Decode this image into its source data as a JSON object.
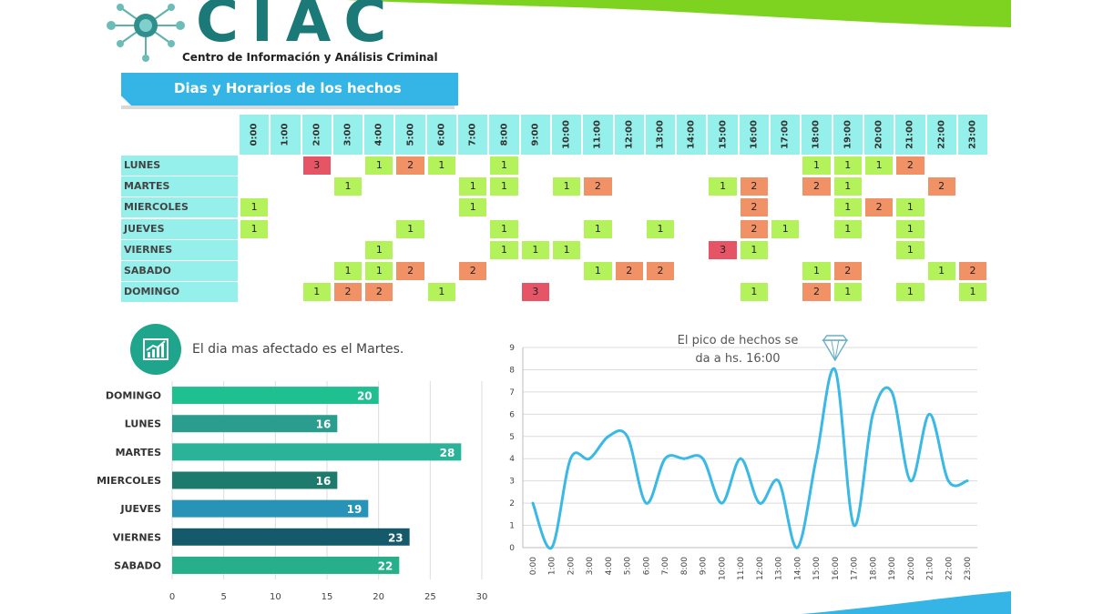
{
  "header": {
    "logo_text": "CIAC",
    "subtitle": "Centro de Información y Análisis Criminal",
    "section_title": "Dias y Horarios de los hechos",
    "brand_green": "#7ed321",
    "brand_teal": "#1b7a78",
    "banner_blue": "#35b5e5"
  },
  "heatmap": {
    "hours": [
      "0:00",
      "1:00",
      "2:00",
      "3:00",
      "4:00",
      "5:00",
      "6:00",
      "7:00",
      "8:00",
      "9:00",
      "10:00",
      "11:00",
      "12:00",
      "13:00",
      "14:00",
      "15:00",
      "16:00",
      "17:00",
      "18:00",
      "19:00",
      "20:00",
      "21:00",
      "22:00",
      "23:00"
    ],
    "days": [
      "LUNES",
      "MARTES",
      "MIERCOLES",
      "JUEVES",
      "VIERNES",
      "SABADO",
      "DOMINGO"
    ],
    "values": [
      [
        0,
        0,
        3,
        0,
        1,
        2,
        1,
        0,
        1,
        0,
        0,
        0,
        0,
        0,
        0,
        0,
        0,
        0,
        1,
        1,
        1,
        2,
        0,
        0
      ],
      [
        0,
        0,
        0,
        1,
        0,
        0,
        0,
        1,
        1,
        0,
        1,
        2,
        0,
        0,
        0,
        1,
        2,
        0,
        2,
        1,
        0,
        0,
        2,
        0
      ],
      [
        1,
        0,
        0,
        0,
        0,
        0,
        0,
        1,
        0,
        0,
        0,
        0,
        0,
        0,
        0,
        0,
        2,
        0,
        0,
        1,
        2,
        1,
        0,
        0
      ],
      [
        1,
        0,
        0,
        0,
        0,
        1,
        0,
        0,
        1,
        0,
        0,
        1,
        0,
        1,
        0,
        0,
        2,
        1,
        0,
        1,
        0,
        1,
        0,
        0
      ],
      [
        0,
        0,
        0,
        0,
        1,
        0,
        0,
        0,
        1,
        1,
        1,
        0,
        0,
        0,
        0,
        3,
        1,
        0,
        0,
        0,
        0,
        1,
        0,
        0
      ],
      [
        0,
        0,
        0,
        1,
        1,
        2,
        0,
        2,
        0,
        0,
        0,
        1,
        2,
        2,
        0,
        0,
        0,
        0,
        1,
        2,
        0,
        0,
        1,
        2
      ],
      [
        0,
        0,
        1,
        2,
        2,
        0,
        1,
        0,
        0,
        3,
        0,
        0,
        0,
        0,
        0,
        0,
        1,
        0,
        2,
        1,
        0,
        1,
        0,
        1
      ]
    ],
    "colors": {
      "1": "#b4f25c",
      "2": "#f19166",
      "3": "#e55565"
    }
  },
  "bar_section": {
    "headline": "El dia mas afectado es el Martes.",
    "icon": "bar-chart-growth-icon"
  },
  "line_section": {
    "annotation_line1": "El pico de hechos se",
    "annotation_line2": "da a hs. 16:00",
    "marker_icon": "diamond-icon"
  },
  "chart_data": [
    {
      "type": "bar",
      "orientation": "horizontal",
      "categories": [
        "DOMINGO",
        "LUNES",
        "MARTES",
        "MIERCOLES",
        "JUEVES",
        "VIERNES",
        "SABADO"
      ],
      "values": [
        20,
        16,
        28,
        16,
        19,
        23,
        22
      ],
      "colors": [
        "#1fbf8f",
        "#2a9d8f",
        "#2bb39a",
        "#1f7a6e",
        "#2693b7",
        "#145a6b",
        "#27ae8a"
      ],
      "xlim": [
        0,
        30
      ],
      "xticks": [
        0,
        5,
        10,
        15,
        20,
        25,
        30
      ],
      "grid": true
    },
    {
      "type": "line",
      "x": [
        "0:00",
        "1:00",
        "2:00",
        "3:00",
        "4:00",
        "5:00",
        "6:00",
        "7:00",
        "8:00",
        "9:00",
        "10:00",
        "11:00",
        "12:00",
        "13:00",
        "14:00",
        "15:00",
        "16:00",
        "17:00",
        "18:00",
        "19:00",
        "20:00",
        "21:00",
        "22:00",
        "23:00"
      ],
      "values": [
        2,
        0,
        4,
        4,
        5,
        5,
        2,
        4,
        4,
        4,
        2,
        4,
        2,
        3,
        0,
        4,
        8,
        1,
        6,
        7,
        3,
        6,
        3,
        3
      ],
      "color": "#3ab8e6",
      "ylim": [
        0,
        9
      ],
      "yticks": [
        0,
        1,
        2,
        3,
        4,
        5,
        6,
        7,
        8,
        9
      ],
      "grid": true
    }
  ]
}
